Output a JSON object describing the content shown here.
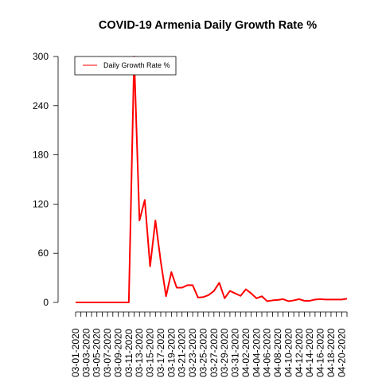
{
  "chart_data": {
    "type": "line",
    "title": "COVID-19 Armenia Daily Growth Rate %",
    "xlabel": "",
    "ylabel": "",
    "ylim": [
      0,
      300
    ],
    "yticks": [
      0,
      60,
      120,
      180,
      240,
      300
    ],
    "grid": false,
    "legend_position": "top-left",
    "x": [
      "03-01-2020",
      "03-02-2020",
      "03-03-2020",
      "03-04-2020",
      "03-05-2020",
      "03-06-2020",
      "03-07-2020",
      "03-08-2020",
      "03-09-2020",
      "03-10-2020",
      "03-11-2020",
      "03-12-2020",
      "03-13-2020",
      "03-14-2020",
      "03-15-2020",
      "03-16-2020",
      "03-17-2020",
      "03-18-2020",
      "03-19-2020",
      "03-20-2020",
      "03-21-2020",
      "03-22-2020",
      "03-23-2020",
      "03-24-2020",
      "03-25-2020",
      "03-26-2020",
      "03-27-2020",
      "03-28-2020",
      "03-29-2020",
      "03-30-2020",
      "03-31-2020",
      "04-01-2020",
      "04-02-2020",
      "04-03-2020",
      "04-04-2020",
      "04-05-2020",
      "04-06-2020",
      "04-07-2020",
      "04-08-2020",
      "04-09-2020",
      "04-10-2020",
      "04-11-2020",
      "04-12-2020",
      "04-13-2020",
      "04-14-2020",
      "04-15-2020",
      "04-16-2020",
      "04-17-2020",
      "04-18-2020",
      "04-19-2020",
      "04-20-2020",
      "04-21-2020"
    ],
    "xtick_labels": [
      "03-01-2020",
      "03-03-2020",
      "03-05-2020",
      "03-07-2020",
      "03-09-2020",
      "03-11-2020",
      "03-13-2020",
      "03-15-2020",
      "03-17-2020",
      "03-19-2020",
      "03-21-2020",
      "03-23-2020",
      "03-25-2020",
      "03-27-2020",
      "03-29-2020",
      "03-31-2020",
      "04-02-2020",
      "04-04-2020",
      "04-06-2020",
      "04-08-2020",
      "04-10-2020",
      "04-12-2020",
      "04-14-2020",
      "04-16-2020",
      "04-18-2020",
      "04-20-2020"
    ],
    "series": [
      {
        "name": "Daily Growth Rate %",
        "color": "#ff0000",
        "values": [
          0,
          0,
          0,
          0,
          0,
          0,
          0,
          0,
          0,
          0,
          0,
          300,
          100,
          125,
          44,
          100,
          50,
          7.5,
          37,
          18,
          18,
          21,
          21,
          6,
          6.5,
          9,
          14,
          24,
          5,
          14,
          11,
          8,
          16,
          11,
          5,
          7.5,
          1.5,
          2.5,
          3,
          4,
          1.5,
          2.5,
          4,
          2,
          2,
          3.5,
          4,
          3.5,
          3.5,
          3.5,
          3.5,
          4.5
        ]
      }
    ]
  }
}
